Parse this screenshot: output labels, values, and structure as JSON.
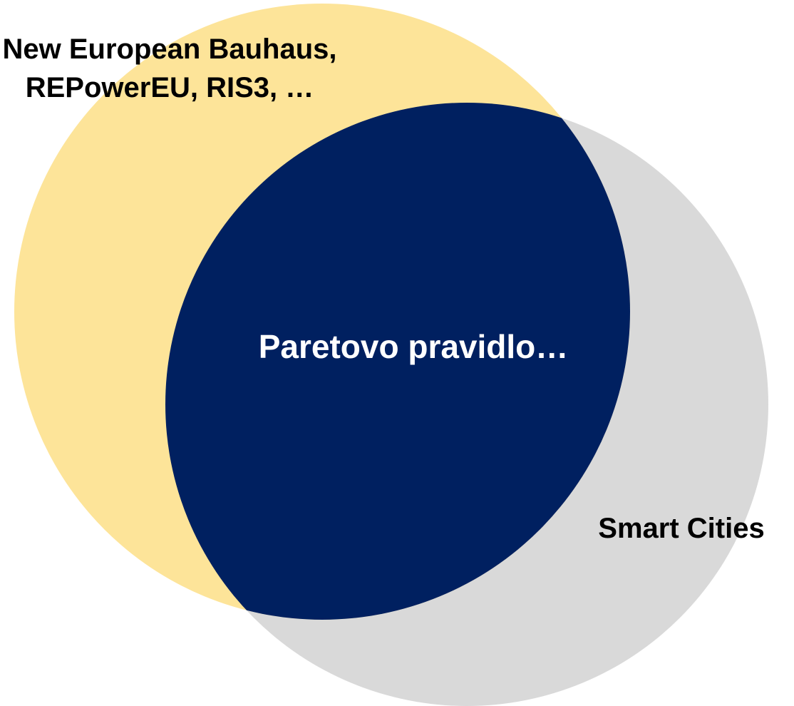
{
  "diagram": {
    "sets": [
      {
        "label_lines": [
          "New European Bauhaus,",
          "REPowerEU, RIS3, …"
        ]
      },
      {
        "label": "Smart Cities"
      }
    ],
    "intersection": {
      "label": "Paretovo pravidlo…"
    }
  }
}
